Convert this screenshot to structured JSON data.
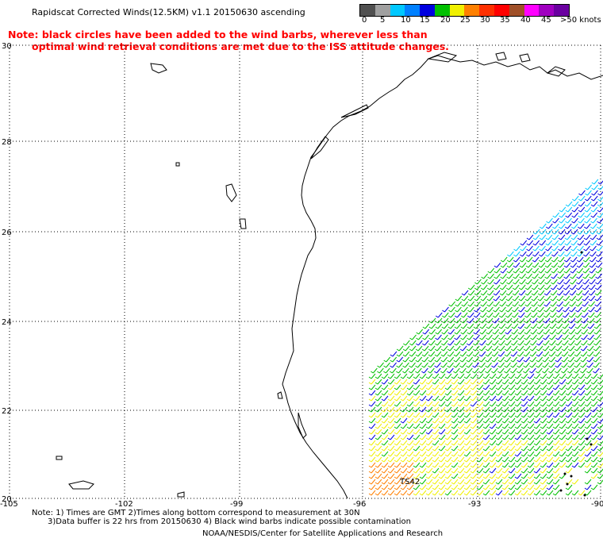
{
  "title": "Rapidscat Corrected Winds(12.5KM) v1.1 20150630 ascending",
  "note": {
    "line1": "Note: black circles have been added to the wind barbs, wherever less than",
    "line2": "optimal wind retrieval conditions are met due to the ISS attitude changes."
  },
  "colorbar": {
    "colors": [
      "#505050",
      "#a0a0a0",
      "#00c8ff",
      "#0080ff",
      "#0000e0",
      "#00c000",
      "#f0f000",
      "#ff8000",
      "#ff3000",
      "#ff0000",
      "#a05028",
      "#ff00ff",
      "#a000c0",
      "#6a00a0"
    ],
    "labels": [
      "0",
      "5",
      "10",
      "15",
      "20",
      "25",
      "30",
      "35",
      "40",
      "45",
      ">50 knots"
    ]
  },
  "axes": {
    "y_ticks": [
      "30",
      "28",
      "26",
      "24",
      "22",
      "20"
    ],
    "x_ticks": [
      "-105",
      "-102",
      "-99",
      "-96",
      "-93",
      "-90"
    ]
  },
  "storm_label": "TS42",
  "footer": {
    "line1": "Note: 1) Times are GMT 2)Times along bottom correspond to measurement at 30N",
    "line2": "3)Data buffer is 22 hrs from 20150630 4) Black wind barbs indicate possible contamination",
    "line3": "NOAA/NESDIS/Center for Satellite Applications and Research"
  }
}
